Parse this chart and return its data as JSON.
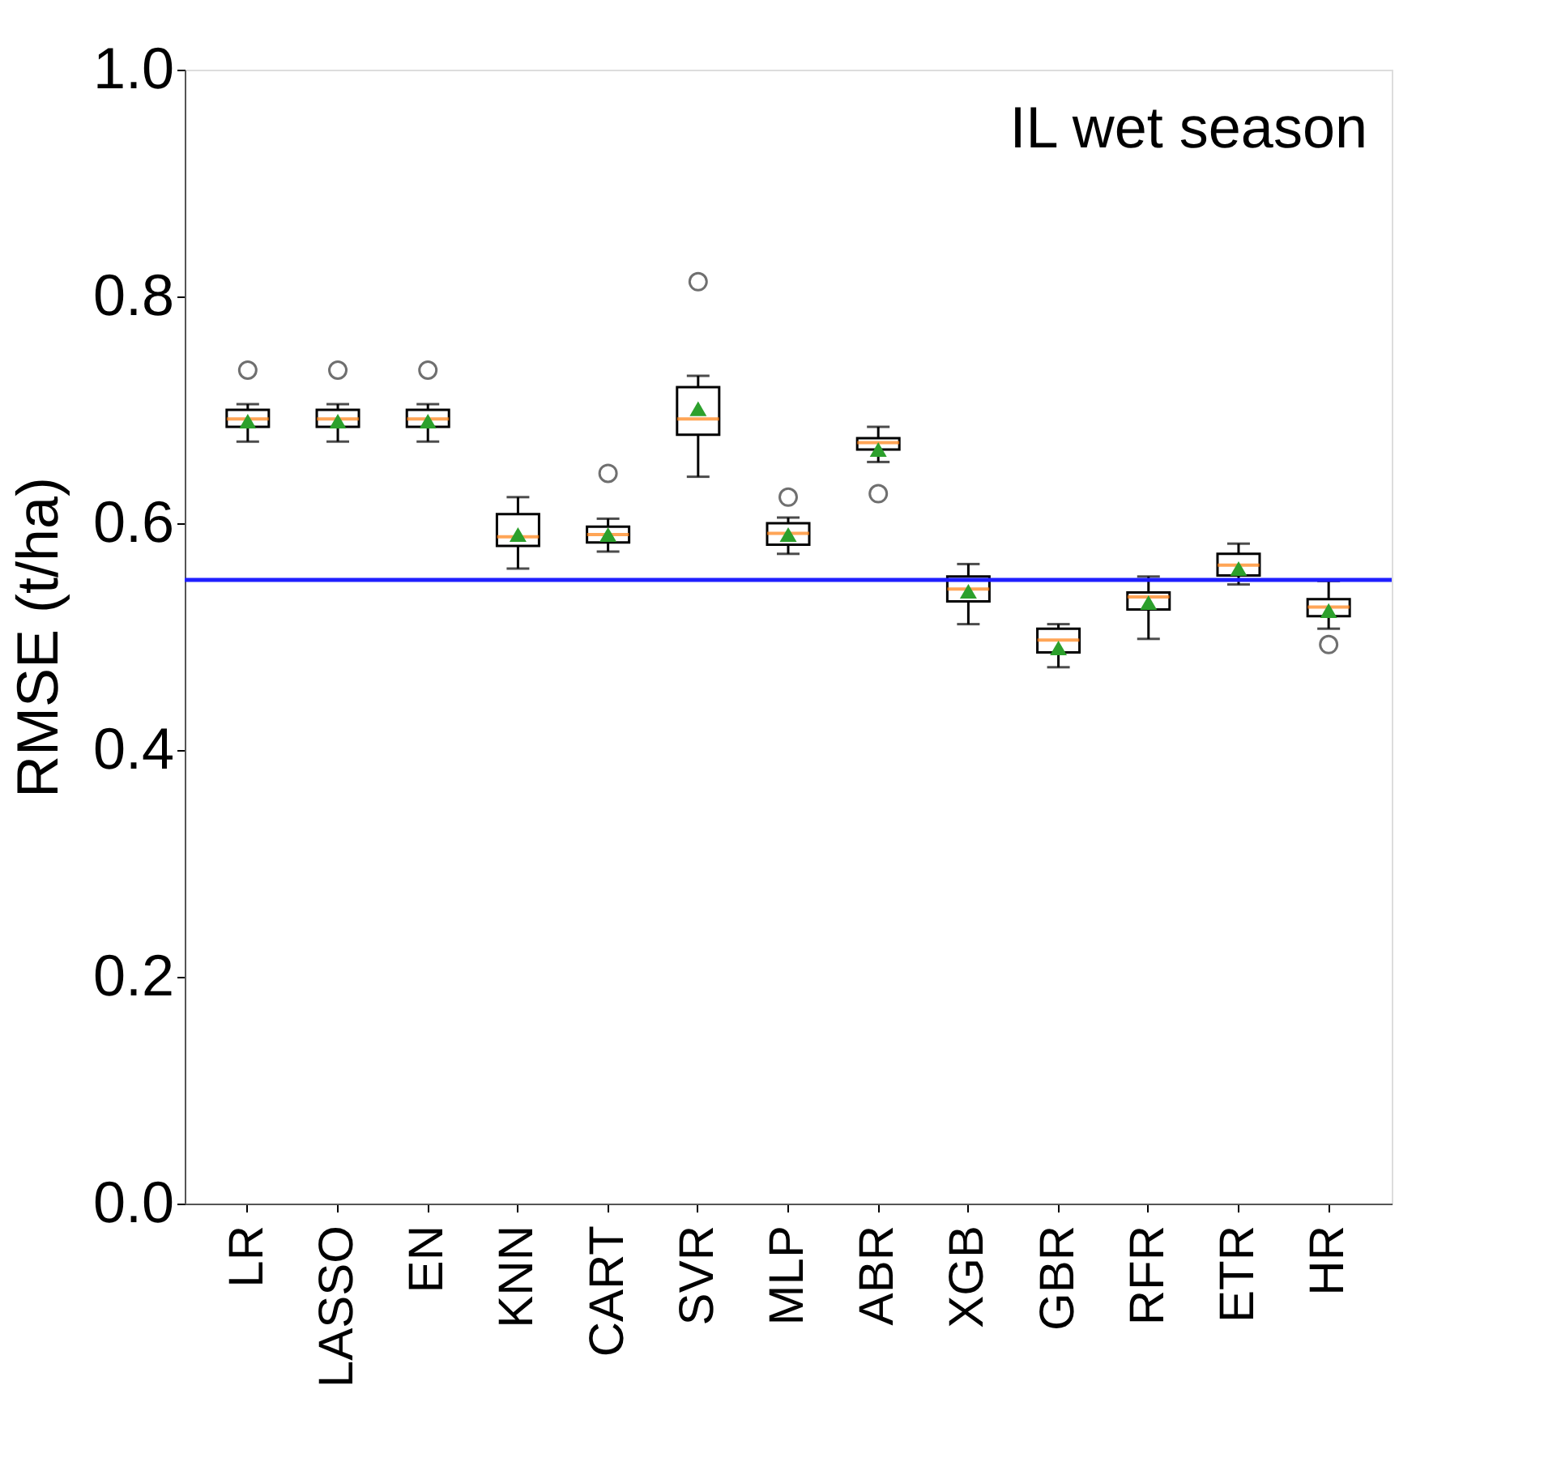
{
  "chart_data": {
    "type": "box",
    "ylabel": "RMSE (t/ha)",
    "annotations": [
      "IL wet season"
    ],
    "categories": [
      "LR",
      "LASSO",
      "EN",
      "KNN",
      "CART",
      "SVR",
      "MLP",
      "ABR",
      "XGB",
      "GBR",
      "RFR",
      "ETR",
      "HR"
    ],
    "boxes": [
      {
        "low": 0.672,
        "q1": 0.685,
        "median": 0.692,
        "q3": 0.7,
        "high": 0.705,
        "mean": 0.69,
        "outliers": [
          0.735
        ]
      },
      {
        "low": 0.672,
        "q1": 0.685,
        "median": 0.692,
        "q3": 0.7,
        "high": 0.705,
        "mean": 0.69,
        "outliers": [
          0.735
        ]
      },
      {
        "low": 0.672,
        "q1": 0.685,
        "median": 0.692,
        "q3": 0.7,
        "high": 0.705,
        "mean": 0.69,
        "outliers": [
          0.735
        ]
      },
      {
        "low": 0.56,
        "q1": 0.58,
        "median": 0.588,
        "q3": 0.608,
        "high": 0.623,
        "mean": 0.59
      },
      {
        "low": 0.575,
        "q1": 0.583,
        "median": 0.59,
        "q3": 0.597,
        "high": 0.604,
        "mean": 0.59,
        "outliers": [
          0.644
        ]
      },
      {
        "low": 0.641,
        "q1": 0.678,
        "median": 0.692,
        "q3": 0.72,
        "high": 0.73,
        "mean": 0.701,
        "outliers": [
          0.813
        ]
      },
      {
        "low": 0.573,
        "q1": 0.581,
        "median": 0.591,
        "q3": 0.6,
        "high": 0.605,
        "mean": 0.59,
        "outliers": [
          0.623
        ]
      },
      {
        "low": 0.654,
        "q1": 0.665,
        "median": 0.671,
        "q3": 0.675,
        "high": 0.685,
        "mean": 0.665,
        "outliers": [
          0.626
        ]
      },
      {
        "low": 0.511,
        "q1": 0.531,
        "median": 0.542,
        "q3": 0.553,
        "high": 0.564,
        "mean": 0.54
      },
      {
        "low": 0.473,
        "q1": 0.486,
        "median": 0.497,
        "q3": 0.507,
        "high": 0.511,
        "mean": 0.49
      },
      {
        "low": 0.498,
        "q1": 0.524,
        "median": 0.535,
        "q3": 0.539,
        "high": 0.553,
        "mean": 0.53
      },
      {
        "low": 0.546,
        "q1": 0.554,
        "median": 0.563,
        "q3": 0.573,
        "high": 0.582,
        "mean": 0.56
      },
      {
        "low": 0.507,
        "q1": 0.518,
        "median": 0.526,
        "q3": 0.533,
        "high": 0.549,
        "mean": 0.523,
        "outliers": [
          0.493
        ]
      }
    ],
    "ylim": [
      0,
      1.0
    ],
    "yticks": [
      {
        "value": 0,
        "label": "0.0"
      },
      0.2,
      0.4,
      0.6,
      0.8,
      {
        "value": 1.0,
        "label": "1.0"
      }
    ],
    "ref_lines": [
      {
        "axis": "y",
        "value": 0.55,
        "color": "#1f1fff"
      }
    ],
    "grid": false
  }
}
